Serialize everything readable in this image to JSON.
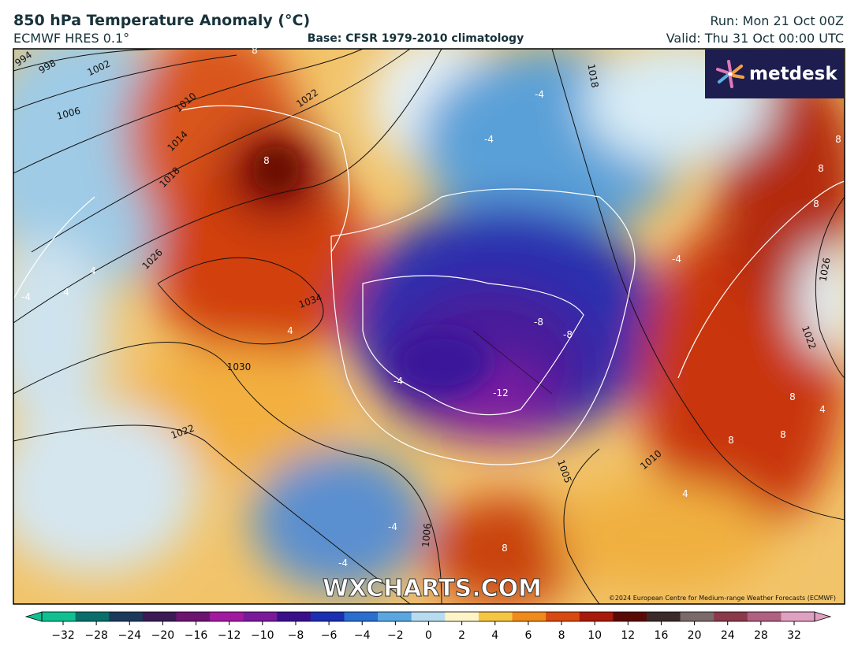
{
  "header": {
    "title": "850 hPa Temperature Anomaly (°C)",
    "model": "ECMWF HRES 0.1°",
    "base": "Base: CFSR 1979-2010 climatology",
    "run": "Run: Mon 21 Oct 00Z",
    "valid": "Valid: Thu 31 Oct 00:00 UTC"
  },
  "map": {
    "logo": "metdesk",
    "watermark": "WXCHARTS.COM",
    "copyright": "©2024 European Centre for Medium-range Weather Forecasts (ECMWF)",
    "isobar_labels": [
      "994",
      "998",
      "1002",
      "1006",
      "1010",
      "1014",
      "1018",
      "1026",
      "1034",
      "1030",
      "1022",
      "1018",
      "1026",
      "1022",
      "1010",
      "1006",
      "1005",
      "1022"
    ],
    "anomaly_labels": [
      "8",
      "8",
      "4",
      "4",
      "-4",
      "4",
      "-4",
      "-4",
      "-4",
      "-8",
      "-8",
      "-12",
      "-4",
      "8",
      "8",
      "8",
      "8",
      "4",
      "8",
      "8",
      "4",
      "-4",
      "-4",
      "8"
    ]
  },
  "colorbar": {
    "ticks": [
      {
        "value": -32,
        "label": "−32"
      },
      {
        "value": -28,
        "label": "−28"
      },
      {
        "value": -24,
        "label": "−24"
      },
      {
        "value": -20,
        "label": "−20"
      },
      {
        "value": -16,
        "label": "−16"
      },
      {
        "value": -12,
        "label": "−12"
      },
      {
        "value": -10,
        "label": "−10"
      },
      {
        "value": -8,
        "label": "−8"
      },
      {
        "value": -6,
        "label": "−6"
      },
      {
        "value": -4,
        "label": "−4"
      },
      {
        "value": -2,
        "label": "−2"
      },
      0,
      2,
      4,
      6,
      8,
      10,
      12,
      16,
      20,
      24,
      28,
      32
    ],
    "colors": [
      "#10c090",
      "#0a6f6a",
      "#1d3a5c",
      "#3b1a55",
      "#6c1570",
      "#a21aa0",
      "#7a1a9a",
      "#3a108a",
      "#1c2fb0",
      "#2a6ed0",
      "#5aa6e0",
      "#b8dcef",
      "#fff4c8",
      "#f6c542",
      "#f08a1a",
      "#d94a10",
      "#a81a0a",
      "#5a0a05",
      "#3a2a2a",
      "#7a6a6a",
      "#8a3a4a",
      "#b06080",
      "#e0a0c0"
    ]
  }
}
